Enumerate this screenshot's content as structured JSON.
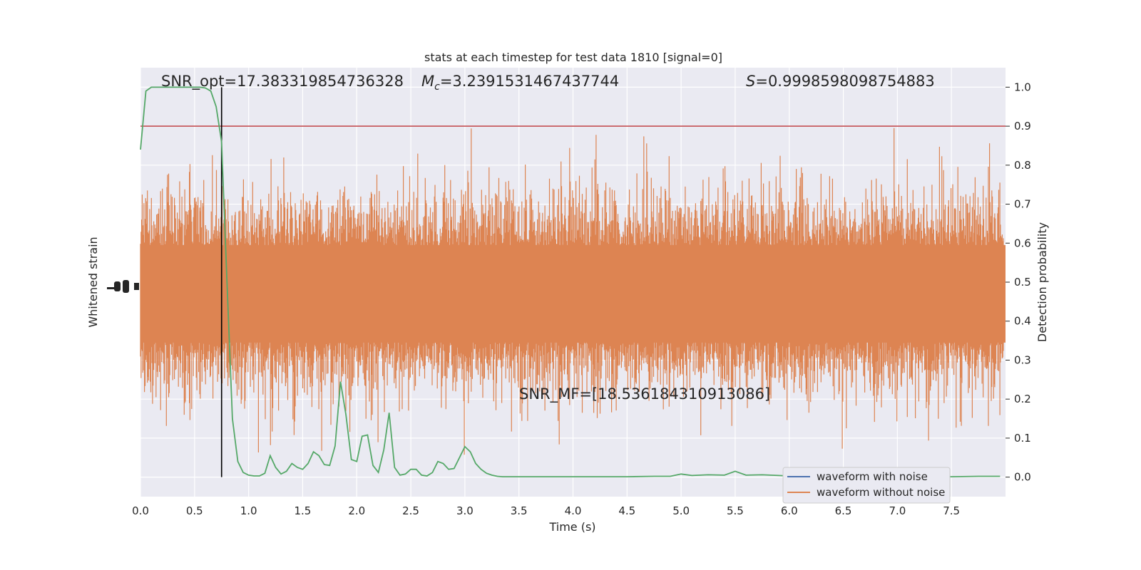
{
  "chart_data": {
    "type": "line",
    "title": "stats at each timestep for test data 1810 [signal=0]",
    "xlabel": "Time (s)",
    "ylabel_left": "Whitened strain",
    "ylabel_right": "Detection probability",
    "x_ticks": [
      "0.0",
      "0.5",
      "1.0",
      "1.5",
      "2.0",
      "2.5",
      "3.0",
      "3.5",
      "4.0",
      "4.5",
      "5.0",
      "5.5",
      "6.0",
      "6.5",
      "7.0",
      "7.5"
    ],
    "right_ticks": [
      "0.0",
      "0.1",
      "0.2",
      "0.3",
      "0.4",
      "0.5",
      "0.6",
      "0.7",
      "0.8",
      "0.9",
      "1.0"
    ],
    "xlim": [
      0,
      8.0
    ],
    "ylim_right": [
      -0.05,
      1.05
    ],
    "grid": true,
    "legend_position": "lower-right",
    "annotations": {
      "snr_opt": "SNR_opt=17.383319854736328",
      "mc": "=3.2391531467437744",
      "mc_symbol": "M",
      "mc_sub": "c",
      "s": "=0.9998598098754883",
      "s_symbol": "S",
      "snr_mf": "SNR_MF=[18.536184310913086]"
    },
    "threshold": 0.9,
    "marker_time": 0.75,
    "series": [
      {
        "name": "waveform with noise",
        "color": "#4c72b0"
      },
      {
        "name": "waveform without noise",
        "color": "#dd8452"
      },
      {
        "color": "#55a868",
        "x": [
          0.0,
          0.05,
          0.1,
          0.15,
          0.2,
          0.25,
          0.3,
          0.35,
          0.4,
          0.45,
          0.5,
          0.55,
          0.6,
          0.65,
          0.7,
          0.75,
          0.8,
          0.85,
          0.9,
          0.95,
          1.0,
          1.05,
          1.1,
          1.15,
          1.2,
          1.25,
          1.3,
          1.35,
          1.4,
          1.45,
          1.5,
          1.55,
          1.6,
          1.65,
          1.7,
          1.75,
          1.8,
          1.85,
          1.9,
          1.95,
          2.0,
          2.05,
          2.1,
          2.15,
          2.2,
          2.25,
          2.3,
          2.35,
          2.4,
          2.45,
          2.5,
          2.55,
          2.6,
          2.65,
          2.7,
          2.75,
          2.8,
          2.85,
          2.9,
          2.95,
          3.0,
          3.05,
          3.1,
          3.15,
          3.2,
          3.25,
          3.3,
          3.35,
          3.4,
          3.45,
          3.5,
          3.55,
          3.6,
          3.65,
          3.7,
          3.75,
          3.8,
          3.85,
          3.9,
          4.0,
          4.25,
          4.5,
          4.75,
          4.9,
          5.0,
          5.1,
          5.25,
          5.4,
          5.5,
          5.6,
          5.75,
          6.0,
          6.25,
          6.5,
          6.75,
          7.0,
          7.25,
          7.5,
          7.75,
          7.95
        ],
        "y": [
          0.84,
          0.99,
          1.0,
          1.0,
          1.0,
          1.0,
          1.0,
          1.0,
          1.0,
          1.0,
          1.0,
          1.0,
          0.998,
          0.99,
          0.95,
          0.86,
          0.5,
          0.15,
          0.04,
          0.012,
          0.005,
          0.003,
          0.003,
          0.01,
          0.055,
          0.025,
          0.008,
          0.015,
          0.035,
          0.025,
          0.02,
          0.035,
          0.065,
          0.055,
          0.032,
          0.03,
          0.08,
          0.245,
          0.16,
          0.045,
          0.04,
          0.105,
          0.108,
          0.03,
          0.012,
          0.07,
          0.165,
          0.025,
          0.005,
          0.008,
          0.02,
          0.02,
          0.005,
          0.003,
          0.012,
          0.04,
          0.035,
          0.02,
          0.022,
          0.05,
          0.078,
          0.065,
          0.035,
          0.02,
          0.01,
          0.005,
          0.002,
          0.001,
          0.001,
          0.001,
          0.001,
          0.001,
          0.001,
          0.001,
          0.001,
          0.001,
          0.001,
          0.001,
          0.001,
          0.001,
          0.001,
          0.001,
          0.002,
          0.002,
          0.008,
          0.004,
          0.006,
          0.005,
          0.015,
          0.005,
          0.006,
          0.003,
          0.002,
          0.002,
          0.001,
          0.001,
          0.001,
          0.001,
          0.002,
          0.002
        ]
      }
    ]
  }
}
